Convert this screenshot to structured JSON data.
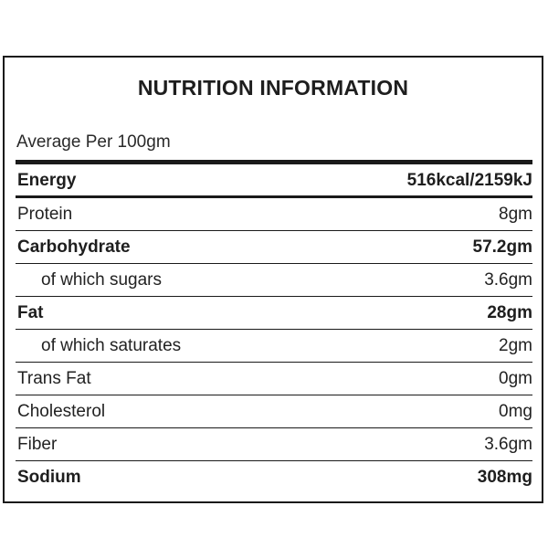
{
  "title": "NUTRITION INFORMATION",
  "serving": "Average Per 100gm",
  "rows": [
    {
      "name": "Energy",
      "value": "516kcal/2159kJ"
    },
    {
      "name": "Protein",
      "value": "8gm"
    },
    {
      "name": "Carbohydrate",
      "value": "57.2gm"
    },
    {
      "name": "of which sugars",
      "value": "3.6gm"
    },
    {
      "name": "Fat",
      "value": "28gm"
    },
    {
      "name": "of which saturates",
      "value": "2gm"
    },
    {
      "name": "Trans Fat",
      "value": "0gm"
    },
    {
      "name": "Cholesterol",
      "value": "0mg"
    },
    {
      "name": "Fiber",
      "value": "3.6gm"
    },
    {
      "name": "Sodium",
      "value": "308mg"
    }
  ]
}
